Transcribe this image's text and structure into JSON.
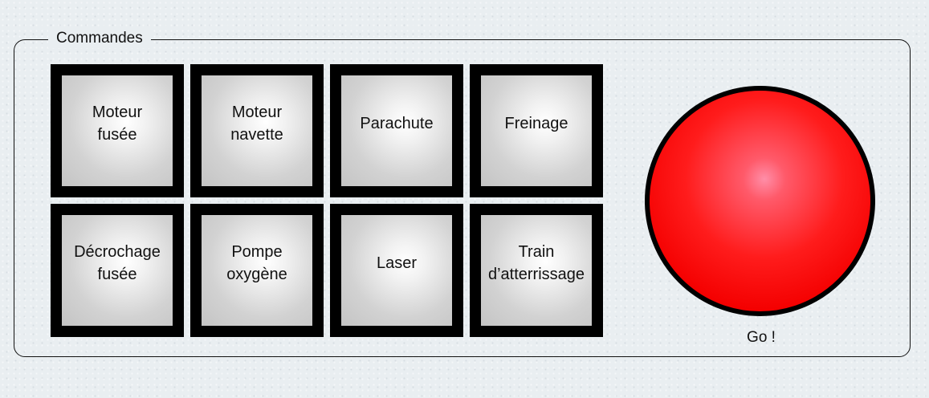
{
  "panel": {
    "legend": "Commandes"
  },
  "buttons": [
    {
      "label": "Moteur\nfusée"
    },
    {
      "label": "Moteur\nnavette"
    },
    {
      "label": "Parachute"
    },
    {
      "label": "Freinage"
    },
    {
      "label": "Décrochage\nfusée"
    },
    {
      "label": "Pompe\noxygène"
    },
    {
      "label": "Laser"
    },
    {
      "label": "Train\nd’atterrissage"
    }
  ],
  "go": {
    "label": "Go !",
    "color": "#ff0000"
  }
}
